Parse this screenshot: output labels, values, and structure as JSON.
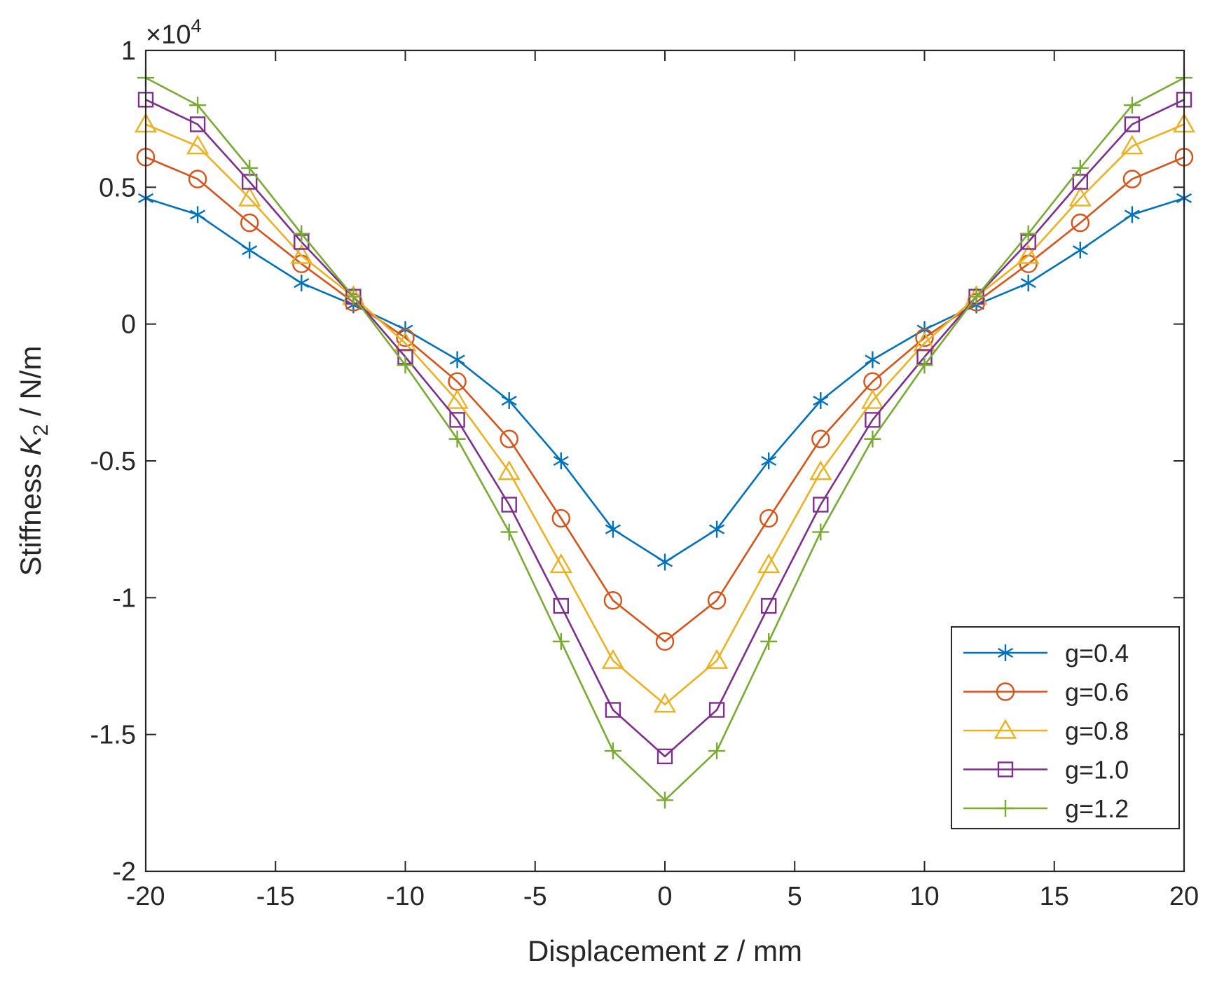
{
  "chart_data": {
    "type": "line",
    "title": "",
    "xlabel": {
      "prefix": "Displacement ",
      "var": "z",
      "suffix": " / mm"
    },
    "ylabel": {
      "prefix": "Stiffness ",
      "var": "K",
      "sub": "2",
      "suffix": " / N/m"
    },
    "exponent": {
      "times": "×10",
      "power": "4"
    },
    "x": [
      -20,
      -18,
      -16,
      -14,
      -12,
      -10,
      -8,
      -6,
      -4,
      -2,
      0,
      2,
      4,
      6,
      8,
      10,
      12,
      14,
      16,
      18,
      20
    ],
    "xlim": [
      -20,
      20
    ],
    "ylim": [
      -2,
      1
    ],
    "xticks": [
      -20,
      -15,
      -10,
      -5,
      0,
      5,
      10,
      15,
      20
    ],
    "xtick_labels": [
      "-20",
      "-15",
      "-10",
      "-5",
      "0",
      "5",
      "10",
      "15",
      "20"
    ],
    "yticks": [
      -2,
      -1.5,
      -1,
      -0.5,
      0,
      0.5,
      1
    ],
    "ytick_labels": [
      "-2",
      "-1.5",
      "-1",
      "-0.5",
      "0",
      "0.5",
      "1"
    ],
    "grid": false,
    "legend_position": "bottom-right",
    "series": [
      {
        "name": "g=0.4",
        "color": "#0072BD",
        "marker": "star",
        "values": [
          0.46,
          0.4,
          0.27,
          0.15,
          0.07,
          -0.02,
          -0.13,
          -0.28,
          -0.5,
          -0.75,
          -0.87,
          -0.75,
          -0.5,
          -0.28,
          -0.13,
          -0.02,
          0.07,
          0.15,
          0.27,
          0.4,
          0.46
        ]
      },
      {
        "name": "g=0.6",
        "color": "#D95319",
        "marker": "circle",
        "values": [
          0.61,
          0.53,
          0.37,
          0.22,
          0.08,
          -0.05,
          -0.21,
          -0.42,
          -0.71,
          -1.01,
          -1.16,
          -1.01,
          -0.71,
          -0.42,
          -0.21,
          -0.05,
          0.08,
          0.22,
          0.37,
          0.53,
          0.61
        ]
      },
      {
        "name": "g=0.8",
        "color": "#EDB120",
        "marker": "triangle",
        "values": [
          0.73,
          0.65,
          0.46,
          0.25,
          0.1,
          -0.07,
          -0.28,
          -0.54,
          -0.88,
          -1.23,
          -1.39,
          -1.23,
          -0.88,
          -0.54,
          -0.28,
          -0.07,
          0.1,
          0.25,
          0.46,
          0.65,
          0.73
        ]
      },
      {
        "name": "g=1.0",
        "color": "#7E2F8E",
        "marker": "square",
        "values": [
          0.82,
          0.73,
          0.52,
          0.3,
          0.1,
          -0.12,
          -0.35,
          -0.66,
          -1.03,
          -1.41,
          -1.58,
          -1.41,
          -1.03,
          -0.66,
          -0.35,
          -0.12,
          0.1,
          0.3,
          0.52,
          0.73,
          0.82
        ]
      },
      {
        "name": "g=1.2",
        "color": "#77AC30",
        "marker": "plus",
        "values": [
          0.9,
          0.8,
          0.57,
          0.33,
          0.1,
          -0.15,
          -0.42,
          -0.76,
          -1.16,
          -1.56,
          -1.74,
          -1.56,
          -1.16,
          -0.76,
          -0.42,
          -0.15,
          0.1,
          0.33,
          0.57,
          0.8,
          0.9
        ]
      }
    ]
  }
}
